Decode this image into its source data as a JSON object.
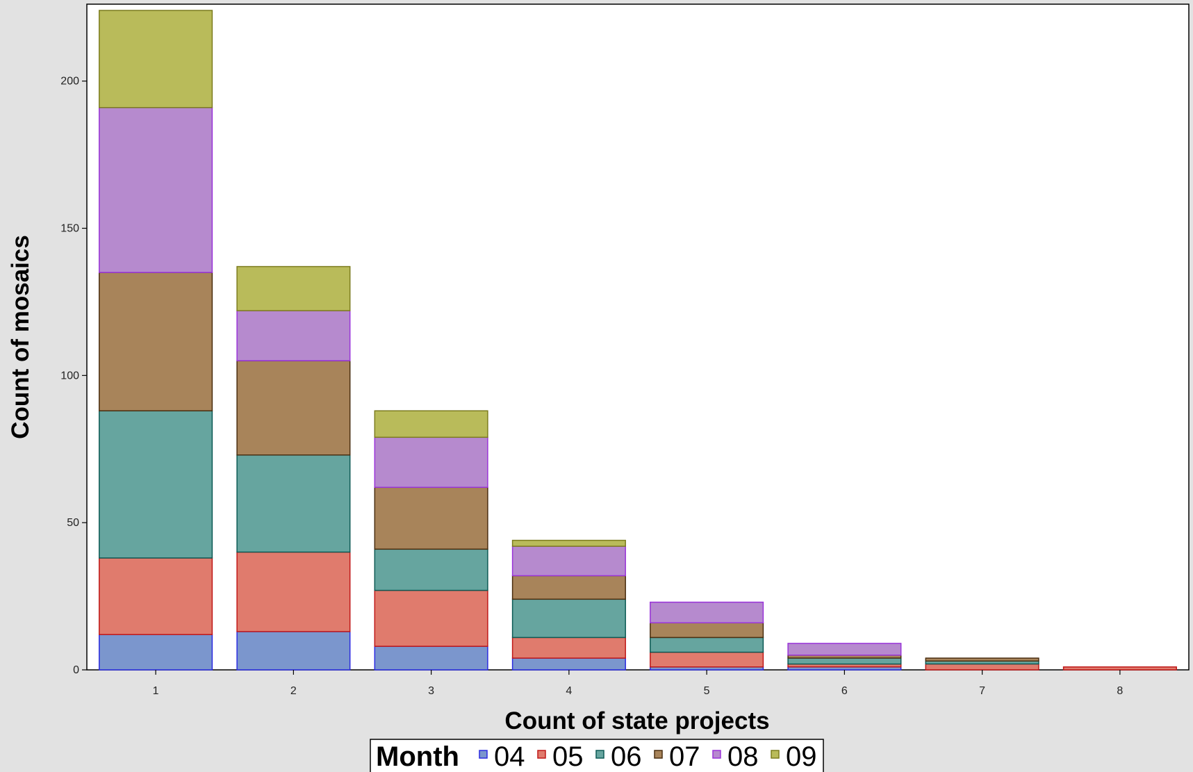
{
  "chart_data": {
    "type": "bar",
    "stacked": true,
    "title": "",
    "xlabel": "Count of state projects",
    "ylabel": "Count of mosaics",
    "categories": [
      "1",
      "2",
      "3",
      "4",
      "5",
      "6",
      "7",
      "8"
    ],
    "y_ticks": [
      "0",
      "50",
      "100",
      "150",
      "200"
    ],
    "ylim": [
      0,
      224
    ],
    "grid": false,
    "legend": {
      "title": "Month",
      "position": "bottom-center"
    },
    "series": [
      {
        "name": "04",
        "values": [
          12,
          13,
          8,
          4,
          1,
          1,
          0,
          0
        ],
        "fill": "#7b96cd",
        "stroke": "#2b2be0"
      },
      {
        "name": "05",
        "values": [
          26,
          27,
          19,
          7,
          5,
          1,
          2,
          1
        ],
        "fill": "#e07b6d",
        "stroke": "#c01818"
      },
      {
        "name": "06",
        "values": [
          50,
          33,
          14,
          13,
          5,
          2,
          1,
          0
        ],
        "fill": "#66a59f",
        "stroke": "#0d5a55"
      },
      {
        "name": "07",
        "values": [
          47,
          32,
          21,
          8,
          5,
          1,
          1,
          0
        ],
        "fill": "#a8845a",
        "stroke": "#4a2e10"
      },
      {
        "name": "08",
        "values": [
          56,
          17,
          17,
          10,
          7,
          4,
          0,
          0
        ],
        "fill": "#b68ace",
        "stroke": "#9a33d9"
      },
      {
        "name": "09",
        "values": [
          33,
          15,
          9,
          2,
          0,
          0,
          0,
          0
        ],
        "fill": "#b9bb5a",
        "stroke": "#7c7c1e"
      }
    ]
  }
}
